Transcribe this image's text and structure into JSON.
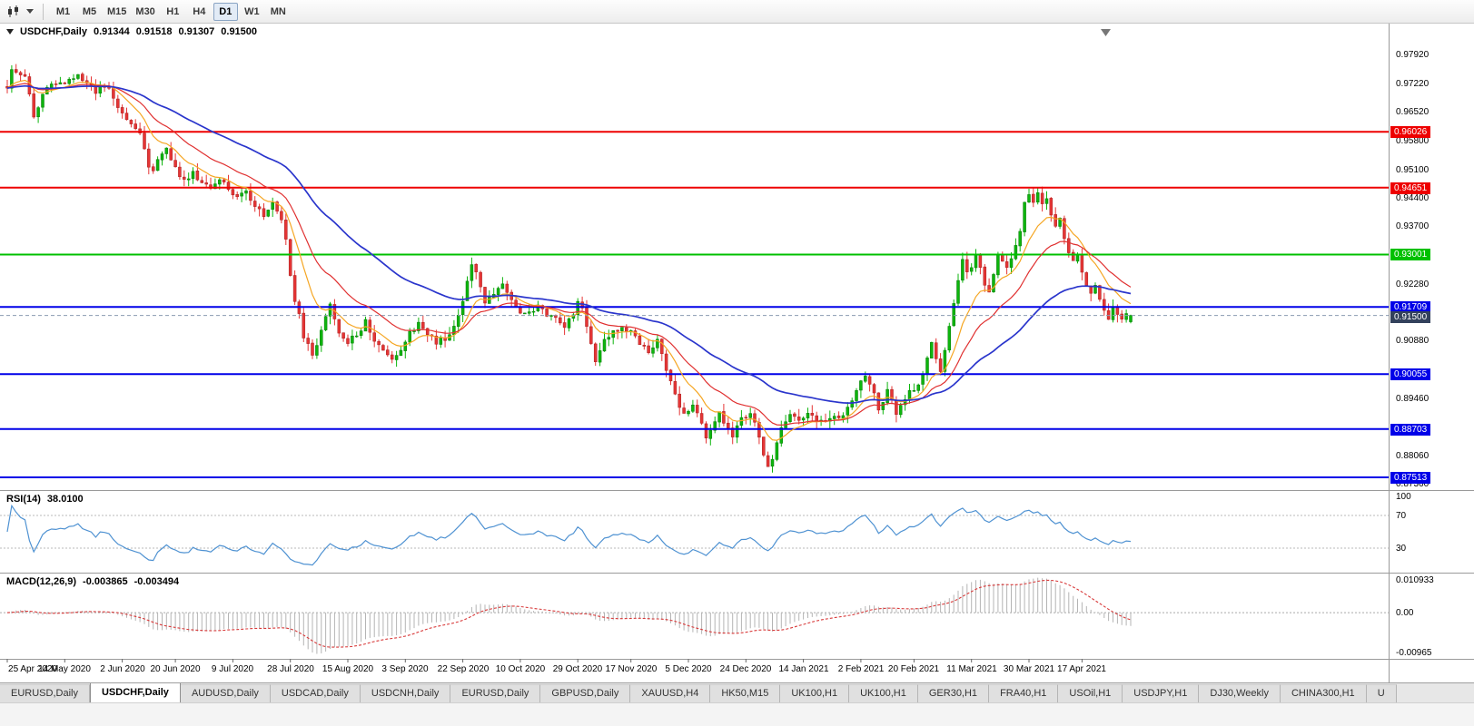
{
  "toolbar": {
    "timeframes": [
      "M1",
      "M5",
      "M15",
      "M30",
      "H1",
      "H4",
      "D1",
      "W1",
      "MN"
    ],
    "active_timeframe": "D1"
  },
  "icons": {
    "chart_type": "candlestick-chart-icon",
    "dropdown": "dropdown-caret-icon",
    "symbol_marker": "triangle-down-icon",
    "shift_marker": "chart-shift-marker-icon"
  },
  "header": {
    "symbol": "USDCHF,Daily",
    "open": "0.91344",
    "high": "0.91518",
    "low": "0.91307",
    "close": "0.91500"
  },
  "price_axis": {
    "min": 0.872,
    "max": 0.986,
    "labels": [
      "0.97920",
      "0.97220",
      "0.96520",
      "0.95800",
      "0.95100",
      "0.94400",
      "0.93700",
      "0.92280",
      "0.90880",
      "0.89460",
      "0.88060",
      "0.87360"
    ]
  },
  "hlines": [
    {
      "price": 0.96026,
      "label": "0.96026",
      "color": "#ee0000",
      "width": 2
    },
    {
      "price": 0.94651,
      "label": "0.94651",
      "color": "#ee0000",
      "width": 2
    },
    {
      "price": 0.93001,
      "label": "0.93001",
      "color": "#00c000",
      "width": 2
    },
    {
      "price": 0.91709,
      "label": "0.91709",
      "color": "#0000e8",
      "width": 2
    },
    {
      "price": 0.90055,
      "label": "0.90055",
      "color": "#0000e8",
      "width": 2
    },
    {
      "price": 0.88703,
      "label": "0.88703",
      "color": "#0000e8",
      "width": 2
    },
    {
      "price": 0.87513,
      "label": "0.87513",
      "color": "#0000e8",
      "width": 2
    }
  ],
  "current_price": {
    "value": 0.915,
    "label": "0.91500",
    "badge_color": "#33415c"
  },
  "rsi": {
    "title": "RSI(14)",
    "value_label": "38.0100",
    "level_labels": [
      "100",
      "70",
      "30"
    ]
  },
  "macd": {
    "title": "MACD(12,26,9)",
    "macd_label": "-0.003865",
    "signal_label": "-0.003494",
    "axis_labels": [
      "0.010933",
      "0.00",
      "-0.00965"
    ]
  },
  "dates": [
    "25 Apr 2020",
    "14 May 2020",
    "2 Jun 2020",
    "20 Jun 2020",
    "9 Jul 2020",
    "28 Jul 2020",
    "15 Aug 2020",
    "3 Sep 2020",
    "22 Sep 2020",
    "10 Oct 2020",
    "29 Oct 2020",
    "17 Nov 2020",
    "5 Dec 2020",
    "24 Dec 2020",
    "14 Jan 2021",
    "2 Feb 2021",
    "20 Feb 2021",
    "11 Mar 2021",
    "30 Mar 2021",
    "17 Apr 2021"
  ],
  "date_indices": [
    0,
    13,
    26,
    38,
    51,
    64,
    77,
    90,
    103,
    116,
    129,
    141,
    154,
    167,
    180,
    193,
    205,
    218,
    231,
    243
  ],
  "tabs": [
    "EURUSD,Daily",
    "USDCHF,Daily",
    "AUDUSD,Daily",
    "USDCAD,Daily",
    "USDCNH,Daily",
    "EURUSD,Daily",
    "GBPUSD,Daily",
    "XAUUSD,H4",
    "HK50,M15",
    "UK100,H1",
    "UK100,H1",
    "GER30,H1",
    "FRA40,H1",
    "USOil,H1",
    "USDJPY,H1",
    "DJ30,Weekly",
    "CHINA300,H1",
    "U"
  ],
  "active_tab_index": 1,
  "chart_data": {
    "type": "candlestick",
    "symbol": "USDCHF",
    "timeframe": "Daily",
    "candles_count": 255,
    "visible_price_range": [
      0.872,
      0.986
    ],
    "last_candle": {
      "open": 0.91344,
      "high": 0.91518,
      "low": 0.91307,
      "close": 0.915
    },
    "price_anchors": [
      [
        0,
        0.9715
      ],
      [
        1,
        0.9757
      ],
      [
        2,
        0.9748
      ],
      [
        4,
        0.9738
      ],
      [
        5,
        0.97
      ],
      [
        6,
        0.964
      ],
      [
        7,
        0.9668
      ],
      [
        8,
        0.97
      ],
      [
        10,
        0.9726
      ],
      [
        12,
        0.9718
      ],
      [
        14,
        0.9736
      ],
      [
        16,
        0.9742
      ],
      [
        18,
        0.9722
      ],
      [
        20,
        0.97
      ],
      [
        22,
        0.9716
      ],
      [
        24,
        0.969
      ],
      [
        26,
        0.9648
      ],
      [
        28,
        0.9618
      ],
      [
        30,
        0.9596
      ],
      [
        31,
        0.9562
      ],
      [
        32,
        0.952
      ],
      [
        33,
        0.9508
      ],
      [
        35,
        0.9548
      ],
      [
        36,
        0.956
      ],
      [
        38,
        0.9512
      ],
      [
        40,
        0.948
      ],
      [
        42,
        0.9502
      ],
      [
        44,
        0.948
      ],
      [
        46,
        0.9462
      ],
      [
        48,
        0.9488
      ],
      [
        50,
        0.9455
      ],
      [
        52,
        0.9442
      ],
      [
        54,
        0.9452
      ],
      [
        56,
        0.9415
      ],
      [
        58,
        0.9398
      ],
      [
        60,
        0.9422
      ],
      [
        61,
        0.9408
      ],
      [
        62,
        0.9392
      ],
      [
        63,
        0.933
      ],
      [
        64,
        0.9252
      ],
      [
        65,
        0.9192
      ],
      [
        66,
        0.9158
      ],
      [
        67,
        0.91
      ],
      [
        68,
        0.9088
      ],
      [
        69,
        0.9055
      ],
      [
        70,
        0.9082
      ],
      [
        71,
        0.9118
      ],
      [
        72,
        0.9152
      ],
      [
        73,
        0.9178
      ],
      [
        74,
        0.9138
      ],
      [
        75,
        0.9108
      ],
      [
        77,
        0.9088
      ],
      [
        79,
        0.91
      ],
      [
        81,
        0.9135
      ],
      [
        83,
        0.9088
      ],
      [
        85,
        0.9062
      ],
      [
        87,
        0.9038
      ],
      [
        89,
        0.907
      ],
      [
        91,
        0.9104
      ],
      [
        93,
        0.913
      ],
      [
        95,
        0.9102
      ],
      [
        97,
        0.9082
      ],
      [
        99,
        0.9096
      ],
      [
        101,
        0.9122
      ],
      [
        103,
        0.9186
      ],
      [
        104,
        0.9242
      ],
      [
        105,
        0.9276
      ],
      [
        106,
        0.9252
      ],
      [
        107,
        0.9218
      ],
      [
        108,
        0.9188
      ],
      [
        110,
        0.9206
      ],
      [
        112,
        0.9226
      ],
      [
        114,
        0.9182
      ],
      [
        116,
        0.9148
      ],
      [
        118,
        0.9158
      ],
      [
        120,
        0.9168
      ],
      [
        122,
        0.9152
      ],
      [
        124,
        0.9142
      ],
      [
        126,
        0.9126
      ],
      [
        128,
        0.9152
      ],
      [
        129,
        0.9186
      ],
      [
        130,
        0.9162
      ],
      [
        131,
        0.9122
      ],
      [
        132,
        0.9082
      ],
      [
        133,
        0.903
      ],
      [
        134,
        0.9062
      ],
      [
        135,
        0.9086
      ],
      [
        137,
        0.9106
      ],
      [
        139,
        0.9122
      ],
      [
        141,
        0.9106
      ],
      [
        143,
        0.9086
      ],
      [
        145,
        0.9062
      ],
      [
        147,
        0.9086
      ],
      [
        148,
        0.9056
      ],
      [
        149,
        0.9022
      ],
      [
        150,
        0.8982
      ],
      [
        151,
        0.8952
      ],
      [
        152,
        0.8922
      ],
      [
        153,
        0.8906
      ],
      [
        155,
        0.8932
      ],
      [
        157,
        0.8882
      ],
      [
        158,
        0.8856
      ],
      [
        160,
        0.8892
      ],
      [
        161,
        0.8906
      ],
      [
        163,
        0.8866
      ],
      [
        164,
        0.8856
      ],
      [
        166,
        0.8892
      ],
      [
        168,
        0.8906
      ],
      [
        169,
        0.8882
      ],
      [
        170,
        0.8846
      ],
      [
        171,
        0.8806
      ],
      [
        172,
        0.8776
      ],
      [
        173,
        0.8792
      ],
      [
        174,
        0.8842
      ],
      [
        175,
        0.8872
      ],
      [
        176,
        0.8896
      ],
      [
        177,
        0.8906
      ],
      [
        179,
        0.8896
      ],
      [
        181,
        0.8906
      ],
      [
        183,
        0.8892
      ],
      [
        185,
        0.8882
      ],
      [
        187,
        0.8896
      ],
      [
        189,
        0.8906
      ],
      [
        191,
        0.8936
      ],
      [
        192,
        0.8966
      ],
      [
        193,
        0.8996
      ],
      [
        194,
        0.9008
      ],
      [
        195,
        0.8986
      ],
      [
        196,
        0.8952
      ],
      [
        197,
        0.8922
      ],
      [
        198,
        0.8936
      ],
      [
        199,
        0.8966
      ],
      [
        200,
        0.8936
      ],
      [
        201,
        0.8906
      ],
      [
        202,
        0.8926
      ],
      [
        203,
        0.8946
      ],
      [
        204,
        0.8966
      ],
      [
        205,
        0.8958
      ],
      [
        206,
        0.8972
      ],
      [
        207,
        0.9002
      ],
      [
        208,
        0.9042
      ],
      [
        209,
        0.9082
      ],
      [
        210,
        0.9042
      ],
      [
        211,
        0.9012
      ],
      [
        212,
        0.9062
      ],
      [
        213,
        0.9122
      ],
      [
        214,
        0.9182
      ],
      [
        215,
        0.9242
      ],
      [
        216,
        0.9282
      ],
      [
        217,
        0.9262
      ],
      [
        218,
        0.9272
      ],
      [
        219,
        0.9292
      ],
      [
        220,
        0.9262
      ],
      [
        221,
        0.9232
      ],
      [
        222,
        0.9206
      ],
      [
        223,
        0.9252
      ],
      [
        224,
        0.9298
      ],
      [
        225,
        0.9282
      ],
      [
        226,
        0.9262
      ],
      [
        227,
        0.9292
      ],
      [
        228,
        0.9326
      ],
      [
        229,
        0.9362
      ],
      [
        230,
        0.9422
      ],
      [
        231,
        0.9452
      ],
      [
        232,
        0.9432
      ],
      [
        233,
        0.9446
      ],
      [
        234,
        0.9422
      ],
      [
        235,
        0.9442
      ],
      [
        236,
        0.9402
      ],
      [
        237,
        0.9372
      ],
      [
        238,
        0.9392
      ],
      [
        239,
        0.9346
      ],
      [
        240,
        0.9312
      ],
      [
        241,
        0.9292
      ],
      [
        242,
        0.9306
      ],
      [
        243,
        0.9262
      ],
      [
        244,
        0.9232
      ],
      [
        245,
        0.9212
      ],
      [
        246,
        0.9226
      ],
      [
        247,
        0.9192
      ],
      [
        248,
        0.9162
      ],
      [
        249,
        0.9146
      ],
      [
        250,
        0.9172
      ],
      [
        251,
        0.9156
      ],
      [
        252,
        0.9142
      ],
      [
        253,
        0.9158
      ],
      [
        254,
        0.915
      ]
    ],
    "ma": [
      {
        "type": "ema",
        "period": 10,
        "color": "#f5a623"
      },
      {
        "type": "ema",
        "period": 21,
        "color": "#e03030"
      },
      {
        "type": "ema",
        "period": 50,
        "color": "#2a35cc"
      }
    ],
    "rsi_period": 14,
    "macd_params": [
      12,
      26,
      9
    ],
    "colors": {
      "up": "#0db50d",
      "down": "#e53535",
      "up_stroke": "#067806",
      "down_stroke": "#a81f1f",
      "rsi": "#4f92d2",
      "macd_bars": "#b4b4b4",
      "macd_signal": "#d83a3a"
    }
  }
}
